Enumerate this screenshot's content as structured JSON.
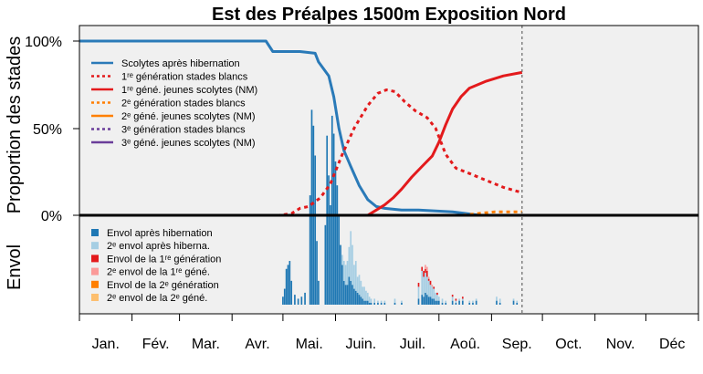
{
  "chart_data": {
    "type": "line",
    "title": "Est des Préalpes 1500m Exposition Nord",
    "ylabel_top": "Proportion des stades",
    "ylabel_bottom": "Envol",
    "yticks": [
      "100%",
      "50%",
      "0%"
    ],
    "x_domain": [
      0,
      365
    ],
    "month_labels": [
      "Jan.",
      "Fév.",
      "Mar.",
      "Avr.",
      "Mai.",
      "Juin.",
      "Juil.",
      "Aoû.",
      "Sep.",
      "Oct.",
      "Nov.",
      "Déc"
    ],
    "month_starts": [
      0,
      31,
      59,
      90,
      120,
      151,
      181,
      212,
      243,
      273,
      304,
      334,
      365
    ],
    "current_day": 261,
    "colors": {
      "hibernation": "#2a7ab8",
      "gen1": "#e31a1c",
      "gen2": "#ff7f00",
      "gen3": "#6a3d9a",
      "envol_hib": "#1f78b4",
      "envol_hib2": "#a6cee3",
      "envol_g1": "#e31a1c",
      "envol_g1b": "#fb9a99",
      "envol_g2": "#ff7f00",
      "envol_g2b": "#fdbf6f"
    },
    "legend_top": [
      {
        "label": "Scolytes après hibernation",
        "color": "#2a7ab8",
        "dash": false
      },
      {
        "label": "1ʳᵉ génération stades blancs",
        "color": "#e31a1c",
        "dash": true
      },
      {
        "label": "1ʳᵉ géné. jeunes scolytes (NM)",
        "color": "#e31a1c",
        "dash": false
      },
      {
        "label": "2ᵉ génération stades blancs",
        "color": "#ff7f00",
        "dash": true
      },
      {
        "label": "2ᵉ géné. jeunes scolytes (NM)",
        "color": "#ff7f00",
        "dash": false
      },
      {
        "label": "3ᵉ génération stades blancs",
        "color": "#6a3d9a",
        "dash": true
      },
      {
        "label": "3ᵉ géné. jeunes scolytes (NM)",
        "color": "#6a3d9a",
        "dash": false
      }
    ],
    "legend_bottom": [
      {
        "label": "Envol après hibernation",
        "color": "#1f78b4"
      },
      {
        "label": "2ᵉ envol après hiberna.",
        "color": "#a6cee3"
      },
      {
        "label": "Envol de la 1ʳᵉ génération",
        "color": "#e31a1c"
      },
      {
        "label": "2ᵉ envol de la 1ʳᵉ géné.",
        "color": "#fb9a99"
      },
      {
        "label": "Envol de la 2ᵉ génération",
        "color": "#ff7f00"
      },
      {
        "label": "2ᵉ envol de la 2ᵉ géné.",
        "color": "#fdbf6f"
      }
    ],
    "series": [
      {
        "key": "hibernation",
        "color": "#2a7ab8",
        "dash": false,
        "x": [
          0,
          110,
          114,
          130,
          139,
          141,
          147,
          150,
          153,
          156,
          160,
          165,
          170,
          175,
          180,
          190,
          200,
          220,
          236
        ],
        "y": [
          1.0,
          1.0,
          0.94,
          0.94,
          0.93,
          0.88,
          0.8,
          0.68,
          0.5,
          0.37,
          0.28,
          0.17,
          0.09,
          0.05,
          0.04,
          0.03,
          0.03,
          0.02,
          0.0
        ]
      },
      {
        "key": "gen1_white",
        "color": "#e31a1c",
        "dash": true,
        "x": [
          0,
          118,
          125,
          130,
          135,
          142,
          148,
          155,
          162,
          170,
          176,
          181,
          186,
          192,
          198,
          205,
          210,
          216,
          222,
          230,
          240,
          250,
          261
        ],
        "y": [
          0.0,
          0.0,
          0.01,
          0.04,
          0.05,
          0.1,
          0.18,
          0.35,
          0.5,
          0.63,
          0.7,
          0.72,
          0.71,
          0.65,
          0.6,
          0.56,
          0.5,
          0.35,
          0.27,
          0.24,
          0.2,
          0.16,
          0.13
        ]
      },
      {
        "key": "gen1_nm",
        "color": "#e31a1c",
        "dash": false,
        "x": [
          170,
          175,
          180,
          185,
          190,
          196,
          202,
          208,
          212,
          216,
          220,
          225,
          230,
          240,
          250,
          261
        ],
        "y": [
          0.0,
          0.03,
          0.06,
          0.1,
          0.15,
          0.22,
          0.28,
          0.34,
          0.42,
          0.52,
          0.61,
          0.68,
          0.73,
          0.77,
          0.8,
          0.82
        ]
      },
      {
        "key": "gen2_white",
        "color": "#ff7f00",
        "dash": true,
        "x": [
          226,
          235,
          245,
          255,
          261
        ],
        "y": [
          0.0,
          0.01,
          0.02,
          0.02,
          0.02
        ]
      }
    ],
    "envol": {
      "max": 1.0,
      "bars": [
        {
          "d": 120,
          "hib": 0.04
        },
        {
          "d": 121,
          "hib": 0.08
        },
        {
          "d": 122,
          "hib": 0.18
        },
        {
          "d": 123,
          "hib": 0.2
        },
        {
          "d": 124,
          "hib": 0.22
        },
        {
          "d": 125,
          "hib": 0.12
        },
        {
          "d": 127,
          "hib": 0.05
        },
        {
          "d": 129,
          "hib": 0.03
        },
        {
          "d": 131,
          "hib": 0.04
        },
        {
          "d": 133,
          "hib": 0.06
        },
        {
          "d": 136,
          "hib": 0.55
        },
        {
          "d": 137,
          "hib": 0.98
        },
        {
          "d": 138,
          "hib": 0.9
        },
        {
          "d": 139,
          "hib": 0.75
        },
        {
          "d": 140,
          "hib": 0.32
        },
        {
          "d": 141,
          "hib": 0.12
        },
        {
          "d": 145,
          "hib": 0.4
        },
        {
          "d": 146,
          "hib": 0.85
        },
        {
          "d": 147,
          "hib": 0.65
        },
        {
          "d": 148,
          "hib": 0.5
        },
        {
          "d": 149,
          "hib": 0.95
        },
        {
          "d": 150,
          "hib": 0.86
        },
        {
          "d": 151,
          "hib": 0.72
        },
        {
          "d": 152,
          "hib": 0.6
        },
        {
          "d": 153,
          "hib": 0.45
        },
        {
          "d": 154,
          "hib": 0.3
        },
        {
          "d": 155,
          "hib": 0.2,
          "hib2": 0.05
        },
        {
          "d": 156,
          "hib": 0.12,
          "hib2": 0.1
        },
        {
          "d": 157,
          "hib": 0.1,
          "hib2": 0.1
        },
        {
          "d": 158,
          "hib": 0.1,
          "hib2": 0.12
        },
        {
          "d": 159,
          "hib": 0.14,
          "hib2": 0.15
        },
        {
          "d": 160,
          "hib": 0.12,
          "hib2": 0.25
        },
        {
          "d": 161,
          "hib": 0.1,
          "hib2": 0.2
        },
        {
          "d": 162,
          "hib": 0.08,
          "hib2": 0.12
        },
        {
          "d": 163,
          "hib": 0.07,
          "hib2": 0.15
        },
        {
          "d": 164,
          "hib": 0.06,
          "hib2": 0.08
        },
        {
          "d": 165,
          "hib": 0.05,
          "hib2": 0.1
        },
        {
          "d": 166,
          "hib": 0.04,
          "hib2": 0.08
        },
        {
          "d": 167,
          "hib": 0.03,
          "hib2": 0.06
        },
        {
          "d": 168,
          "hib": 0.02,
          "hib2": 0.07
        },
        {
          "d": 169,
          "hib": 0.02,
          "hib2": 0.05
        },
        {
          "d": 170,
          "hib": 0.02,
          "hib2": 0.04
        },
        {
          "d": 171,
          "hib": 0.01,
          "hib2": 0.03
        },
        {
          "d": 172,
          "hib": 0.01,
          "hib2": 0.02
        },
        {
          "d": 174,
          "hib": 0.01,
          "hib2": 0.02
        },
        {
          "d": 176,
          "hib": 0.01,
          "hib2": 0.01
        },
        {
          "d": 178,
          "hib": 0.01,
          "hib2": 0.01
        },
        {
          "d": 180,
          "hib": 0.01,
          "hib2": 0.01
        },
        {
          "d": 186,
          "hib": 0.01,
          "hib2": 0.02
        },
        {
          "d": 190,
          "hib": 0.01,
          "hib2": 0.01
        },
        {
          "d": 200,
          "hib": 0.03,
          "hib2": 0.06,
          "g1": 0.02
        },
        {
          "d": 202,
          "hib": 0.05,
          "hib2": 0.12,
          "g1": 0.02
        },
        {
          "d": 203,
          "hib": 0.04,
          "hib2": 0.1,
          "g1": 0.03
        },
        {
          "d": 204,
          "hib": 0.06,
          "hib2": 0.1,
          "g1": 0.02,
          "g1b": 0.02
        },
        {
          "d": 205,
          "hib": 0.05,
          "hib2": 0.09,
          "g1": 0.03,
          "g1b": 0.02
        },
        {
          "d": 206,
          "hib": 0.04,
          "hib2": 0.08,
          "g1": 0.01,
          "g1b": 0.01
        },
        {
          "d": 207,
          "hib": 0.04,
          "hib2": 0.06,
          "g1": 0.02
        },
        {
          "d": 208,
          "hib": 0.03,
          "hib2": 0.06,
          "g1b": 0.01
        },
        {
          "d": 209,
          "hib": 0.03,
          "hib2": 0.05,
          "g1": 0.01
        },
        {
          "d": 210,
          "hib": 0.02,
          "hib2": 0.04
        },
        {
          "d": 211,
          "hib": 0.02,
          "hib2": 0.03,
          "g1": 0.01
        },
        {
          "d": 212,
          "hib": 0.02,
          "hib2": 0.02
        },
        {
          "d": 214,
          "hib": 0.01,
          "hib2": 0.02
        },
        {
          "d": 216,
          "hib": 0.01,
          "hib2": 0.01
        },
        {
          "d": 220,
          "hib": 0.02,
          "hib2": 0.02,
          "g1": 0.01
        },
        {
          "d": 222,
          "hib": 0.01,
          "hib2": 0.01,
          "g1": 0.01
        },
        {
          "d": 224,
          "hib": 0.02,
          "hib2": 0.01
        },
        {
          "d": 226,
          "hib": 0.02,
          "hib2": 0.01,
          "g1": 0.01
        },
        {
          "d": 230,
          "hib": 0.01,
          "hib2": 0.01
        },
        {
          "d": 232,
          "hib": 0.01,
          "hib2": 0.01
        },
        {
          "d": 234,
          "hib": 0.02,
          "hib2": 0.01
        },
        {
          "d": 246,
          "hib": 0.02,
          "hib2": 0.02
        },
        {
          "d": 248,
          "hib": 0.01,
          "hib2": 0.02
        },
        {
          "d": 256,
          "hib": 0.02,
          "hib2": 0.01
        },
        {
          "d": 258,
          "hib": 0.01,
          "hib2": 0.01
        }
      ]
    }
  }
}
